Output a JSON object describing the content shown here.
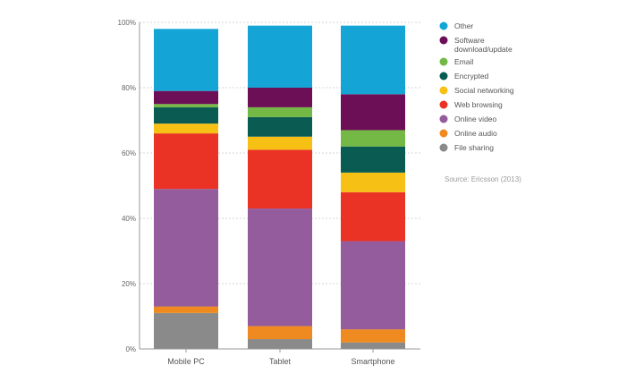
{
  "chart_data": {
    "type": "bar",
    "stacked": true,
    "categories": [
      "Mobile PC",
      "Tablet",
      "Smartphone"
    ],
    "ylim": [
      0,
      100
    ],
    "yticks": [
      "0%",
      "20%",
      "40%",
      "60%",
      "80%",
      "100%"
    ],
    "grid": true,
    "legend_position": "right",
    "series": [
      {
        "name": "File sharing",
        "color": "#8a8a8a",
        "values": [
          11,
          3,
          2
        ]
      },
      {
        "name": "Online audio",
        "color": "#ee8a1f",
        "values": [
          2,
          4,
          4
        ]
      },
      {
        "name": "Online video",
        "color": "#945c9c",
        "values": [
          36,
          36,
          27
        ]
      },
      {
        "name": "Web browsing",
        "color": "#ea3324",
        "values": [
          17,
          18,
          15
        ]
      },
      {
        "name": "Social networking",
        "color": "#f6c114",
        "values": [
          3,
          4,
          6
        ]
      },
      {
        "name": "Encrypted",
        "color": "#0a5c52",
        "values": [
          5,
          6,
          8
        ]
      },
      {
        "name": "Email",
        "color": "#74b845",
        "values": [
          1,
          3,
          5
        ]
      },
      {
        "name": "Software download/update",
        "color": "#6d0f56",
        "values": [
          4,
          6,
          11
        ]
      },
      {
        "name": "Other",
        "color": "#14a5d6",
        "values": [
          19,
          19,
          21
        ]
      }
    ],
    "legend_order": [
      "Other",
      "Software download/update",
      "Email",
      "Encrypted",
      "Social networking",
      "Web browsing",
      "Online video",
      "Online audio",
      "File sharing"
    ],
    "source_note": "Source: Ericsson (2013)"
  }
}
